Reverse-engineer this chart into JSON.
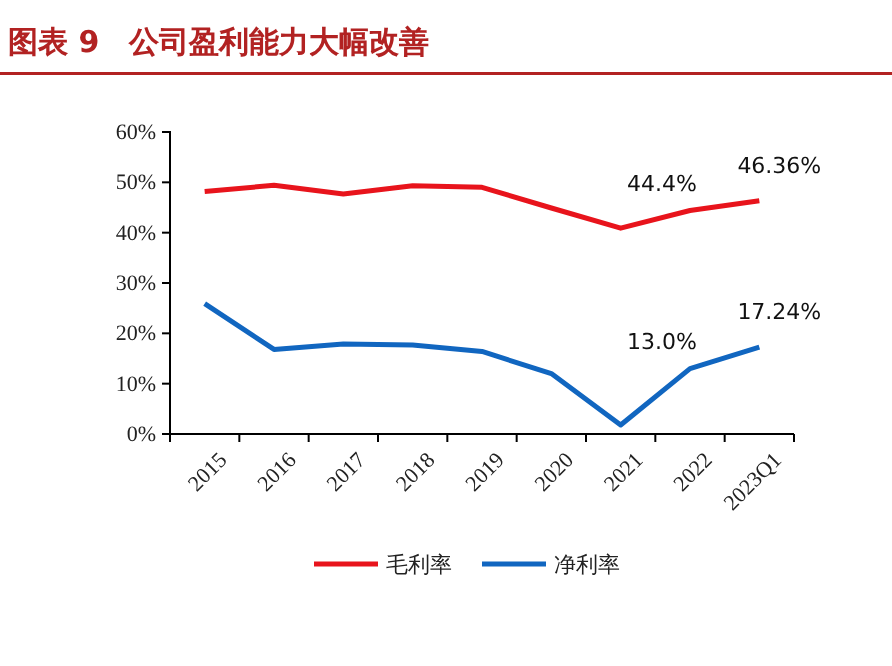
{
  "chart_data": {
    "type": "line",
    "title": "图表 9　公司盈利能力大幅改善",
    "categories": [
      "2015",
      "2016",
      "2017",
      "2018",
      "2019",
      "2020",
      "2021",
      "2022",
      "2023Q1"
    ],
    "series": [
      {
        "name": "毛利率",
        "color": "#e8141c",
        "values": [
          48.2,
          49.4,
          47.7,
          49.3,
          49.0,
          44.9,
          40.9,
          44.4,
          46.36
        ],
        "value_labels": [
          null,
          null,
          null,
          null,
          null,
          null,
          null,
          "44.4%",
          "46.36%"
        ]
      },
      {
        "name": "净利率",
        "color": "#1166c0",
        "values": [
          25.9,
          16.8,
          17.9,
          17.7,
          16.4,
          12.0,
          1.8,
          13.0,
          17.24
        ],
        "value_labels": [
          null,
          null,
          null,
          null,
          null,
          null,
          null,
          "13.0%",
          "17.24%"
        ]
      }
    ],
    "ylim": [
      0,
      60
    ],
    "yticks": [
      {
        "value": 0,
        "label": "0%"
      },
      {
        "value": 10,
        "label": "10%"
      },
      {
        "value": 20,
        "label": "20%"
      },
      {
        "value": 30,
        "label": "30%"
      },
      {
        "value": 40,
        "label": "40%"
      },
      {
        "value": 50,
        "label": "50%"
      },
      {
        "value": 60,
        "label": "60%"
      }
    ],
    "grid": false,
    "legend": "bottom",
    "marker": "none",
    "line_style": "solid"
  }
}
